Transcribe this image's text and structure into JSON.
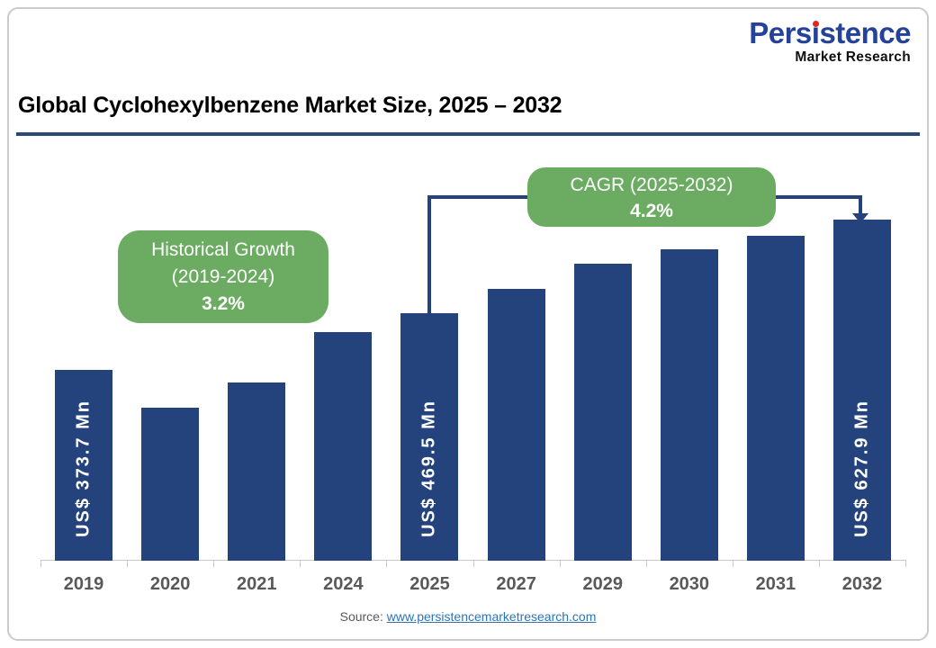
{
  "logo": {
    "brand": "Persistence",
    "brand_pre": "Pers",
    "brand_dotless_i": "ı",
    "brand_post": "stence",
    "subtitle": "Market Research",
    "brand_color": "#25429A",
    "dot_color": "#E2261C"
  },
  "title": "Global Cyclohexylbenzene Market Size, 2025 – 2032",
  "callouts": {
    "historical": {
      "line1": "Historical Growth",
      "line2": "(2019-2024)",
      "value": "3.2%"
    },
    "cagr": {
      "line1": "CAGR (2025-2032)",
      "value": "4.2%"
    }
  },
  "source": {
    "label": "Source:",
    "link_text": "www.persistencemarketresearch.com"
  },
  "colors": {
    "bar": "#24437C",
    "green": "#6BAC62",
    "connector": "#24437C",
    "title_rule": "#2B4B77",
    "axis": "#C9C9C9",
    "year_label": "#595959",
    "link": "#2E74B5",
    "logo_blue": "#25429A",
    "logo_red": "#E2261C"
  },
  "chart_data": {
    "type": "bar",
    "title": "Global Cyclohexylbenzene Market Size, 2025 – 2032",
    "unit": "US$ Mn",
    "categories": [
      "2019",
      "2020",
      "2021",
      "2024",
      "2025",
      "2027",
      "2029",
      "2030",
      "2031",
      "2032"
    ],
    "values": [
      373.7,
      309,
      353,
      437.5,
      469.5,
      510,
      553.5,
      577,
      601,
      627.9
    ],
    "bar_labels": [
      "US$ 373.7 Mn",
      null,
      null,
      null,
      "US$ 469.5 Mn",
      null,
      null,
      null,
      null,
      "US$ 627.9 Mn"
    ],
    "annotations": [
      {
        "text": "Historical Growth (2019-2024) 3.2%",
        "span": [
          "2019",
          "2024"
        ]
      },
      {
        "text": "CAGR (2025-2032) 4.2%",
        "span": [
          "2025",
          "2032"
        ]
      }
    ],
    "ylim": [
      0,
      700
    ],
    "grid": false,
    "legend": false
  }
}
